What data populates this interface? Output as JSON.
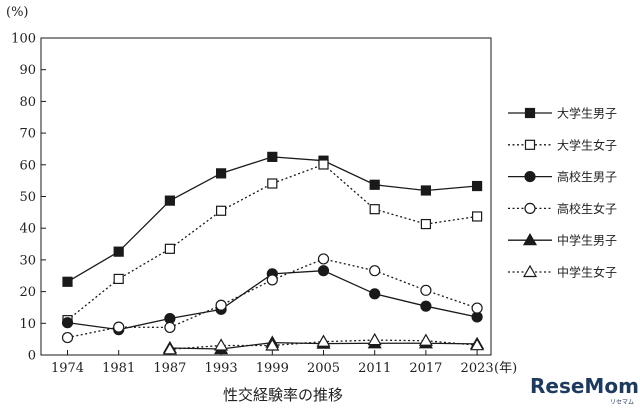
{
  "chart_data": {
    "type": "line",
    "title": "性交経験率の推移",
    "y_unit": "(%)",
    "x_unit": "(年)",
    "x": [
      "1974",
      "1981",
      "1987",
      "1993",
      "1999",
      "2005",
      "2011",
      "2017",
      "2023"
    ],
    "ylim": [
      0,
      100
    ],
    "yticks": [
      "0",
      "10",
      "20",
      "30",
      "40",
      "50",
      "60",
      "70",
      "80",
      "90",
      "100"
    ],
    "grid": false,
    "legend_position": "right",
    "series": [
      {
        "name": "大学生男子",
        "marker": "square-filled",
        "line": "solid",
        "values": [
          23.1,
          32.6,
          48.7,
          57.3,
          62.5,
          61.3,
          53.7,
          51.9,
          53.3
        ]
      },
      {
        "name": "大学生女子",
        "marker": "square-open",
        "line": "dotted",
        "values": [
          11.0,
          24.0,
          33.5,
          45.5,
          54.1,
          60.1,
          46.0,
          41.3,
          43.7
        ]
      },
      {
        "name": "高校生男子",
        "marker": "circle-filled",
        "line": "solid",
        "values": [
          10.2,
          8.0,
          11.5,
          14.4,
          25.6,
          26.6,
          19.3,
          15.4,
          12.0
        ]
      },
      {
        "name": "高校生女子",
        "marker": "circle-open",
        "line": "dotted",
        "values": [
          5.5,
          8.8,
          8.7,
          15.7,
          23.7,
          30.3,
          26.6,
          20.4,
          14.8
        ]
      },
      {
        "name": "中学生男子",
        "marker": "triangle-filled",
        "line": "solid",
        "values": [
          null,
          null,
          2.2,
          1.9,
          3.9,
          3.6,
          3.7,
          3.7,
          3.5
        ]
      },
      {
        "name": "中学生女子",
        "marker": "triangle-open",
        "line": "dotted",
        "values": [
          null,
          null,
          1.8,
          3.0,
          3.0,
          4.2,
          4.7,
          4.5,
          3.1
        ]
      }
    ]
  },
  "branding": {
    "logo_text": "ReseMom",
    "logo_sub": "リセマム"
  },
  "colors": {
    "ink": "#1a1a1a",
    "brand": "#1d3a5f"
  }
}
